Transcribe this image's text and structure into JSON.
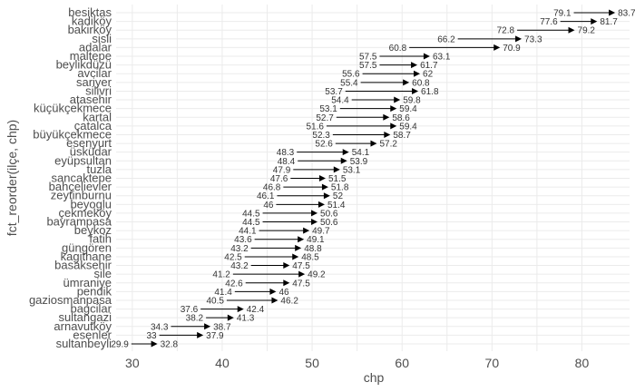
{
  "chart_data": {
    "type": "dumbbell-arrow",
    "xlabel": "chp",
    "ylabel": "fct_reorder(ilçe, chp)",
    "xlim": [
      28.2,
      85.3
    ],
    "xticks": [
      30,
      40,
      50,
      60,
      70,
      80
    ],
    "grid": true,
    "categories": [
      "besiktas",
      "kadiköy",
      "bakirköy",
      "sisli",
      "adalar",
      "maltepe",
      "beylikdüzü",
      "avcilar",
      "sariyer",
      "silivri",
      "atasehir",
      "küçükçekmece",
      "kartal",
      "çatalca",
      "büyükçekmece",
      "esenyurt",
      "üsküdar",
      "eyüpsultan",
      "tuzla",
      "sancaktepe",
      "bahçelievler",
      "zeytinburnu",
      "beyoglu",
      "çekmeköy",
      "bayrampasa",
      "beykoz",
      "fatih",
      "güngören",
      "kagithane",
      "basaksehir",
      "sile",
      "ümraniye",
      "pendik",
      "gaziosmanpasa",
      "bagcilar",
      "sultangazi",
      "arnavutköy",
      "esenler",
      "sultanbeyli"
    ],
    "start": [
      79.1,
      77.6,
      72.8,
      66.2,
      60.8,
      57.5,
      57.5,
      55.6,
      55.4,
      53.7,
      54.4,
      53.1,
      52.7,
      51.6,
      52.3,
      52.6,
      48.3,
      48.4,
      47.9,
      47.6,
      46.8,
      46.1,
      46,
      44.5,
      44.5,
      44.1,
      43.6,
      43.2,
      42.5,
      43.2,
      41.2,
      42.6,
      41.4,
      40.5,
      37.6,
      38.2,
      34.3,
      33,
      29.9
    ],
    "end": [
      83.7,
      81.7,
      79.2,
      73.3,
      70.9,
      63.1,
      61.7,
      62,
      60.8,
      61.8,
      59.8,
      59.4,
      58.6,
      59.4,
      58.7,
      57.2,
      54.1,
      53.9,
      53.1,
      51.5,
      51.8,
      52,
      51.4,
      50.6,
      50.6,
      49.7,
      49.1,
      48.8,
      48.5,
      47.5,
      49.2,
      47.5,
      46,
      46.2,
      42.4,
      41.3,
      38.7,
      37.9,
      32.8
    ],
    "start_labels": [
      "79.1",
      "77.6",
      "72.8",
      "66.2",
      "60.8",
      "57.5",
      "57.5",
      "55.6",
      "55.4",
      "53.7",
      "54.4",
      "53.1",
      "52.7",
      "51.6",
      "52.3",
      "52.6",
      "48.3",
      "48.4",
      "47.9",
      "47.6",
      "46.8",
      "46.1",
      "46",
      "44.5",
      "44.5",
      "44.1",
      "43.6",
      "43.2",
      "42.5",
      "43.2",
      "41.2",
      "42.6",
      "41.4",
      "40.5",
      "37.6",
      "38.2",
      "34.3",
      "33",
      "29.9"
    ],
    "end_labels": [
      "83.7",
      "81.7",
      "79.2",
      "73.3",
      "70.9",
      "63.1",
      "61.7",
      "62",
      "60.8",
      "61.8",
      "59.8",
      "59.4",
      "58.6",
      "59.4",
      "58.7",
      "57.2",
      "54.1",
      "53.9",
      "53.1",
      "51.5",
      "51.8",
      "52",
      "51.4",
      "50.6",
      "50.6",
      "49.7",
      "49.1",
      "48.8",
      "48.5",
      "47.5",
      "49.2",
      "47.5",
      "46",
      "46.2",
      "42.4",
      "41.3",
      "38.7",
      "37.9",
      "32.8"
    ]
  }
}
